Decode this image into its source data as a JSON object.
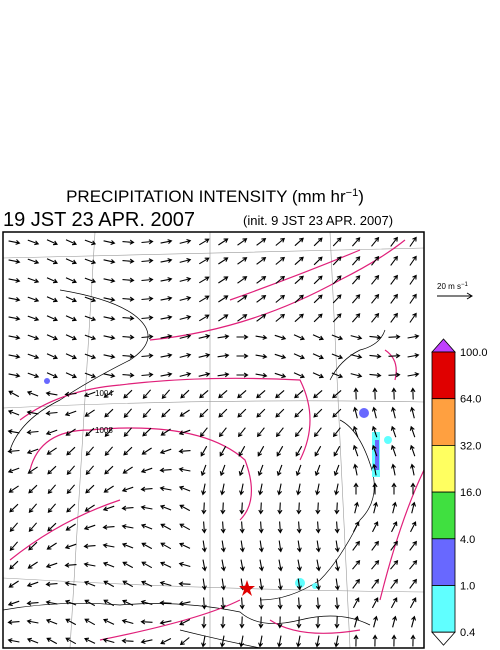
{
  "header": {
    "title": {
      "text": "PRECIPITATION INTENSITY (mm hr",
      "exponent": "−1",
      "closing": ")"
    },
    "valid_time": "19 JST 23 APR. 2007",
    "init_time": "(init. 9 JST 23 APR. 2007)"
  },
  "map": {
    "isobar_labels": [
      "1004",
      "1008"
    ],
    "reference_vector": {
      "text": "20 m s",
      "exponent": "−1"
    }
  },
  "colorbar": {
    "labels": [
      "100.0",
      "64.0",
      "32.0",
      "16.0",
      "4.0",
      "1.0",
      "0.4"
    ],
    "colors": [
      "#e00000",
      "#ffa040",
      "#ffff60",
      "#40e040",
      "#6868ff",
      "#60ffff"
    ],
    "over_color": "#c040ff",
    "under_color": "#ffffff"
  }
}
